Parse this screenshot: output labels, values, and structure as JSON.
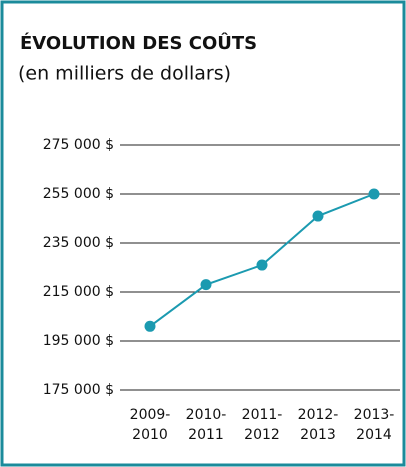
{
  "chart_data": {
    "type": "line",
    "title": "ÉVOLUTION DES COÛTS",
    "subtitle": "(en milliers de dollars)",
    "categories": [
      "2009-2010",
      "2010-2011",
      "2011-2012",
      "2012-2013",
      "2013-2014"
    ],
    "series": [
      {
        "name": "Coûts",
        "color": "#1b9ab0",
        "values": [
          201000,
          218000,
          226000,
          246000,
          255000
        ]
      }
    ],
    "ylim": [
      175000,
      275000
    ],
    "yticks": [
      {
        "value": 175000,
        "label": "175 000 $"
      },
      {
        "value": 195000,
        "label": "195 000 $"
      },
      {
        "value": 215000,
        "label": "215 000 $"
      },
      {
        "value": 235000,
        "label": "235 000 $"
      },
      {
        "value": 255000,
        "label": "255 000 $"
      },
      {
        "value": 275000,
        "label": "275 000 $"
      }
    ],
    "grid": true
  }
}
